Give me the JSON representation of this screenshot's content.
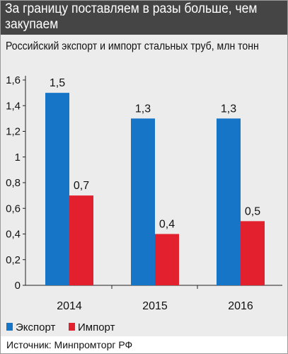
{
  "title": "За границу поставляем в разы больше, чем закупаем",
  "subtitle": "Российский экспорт и импорт стальных труб, млн тонн",
  "source": "Источник: Минпромторг РФ",
  "colors": {
    "header": "#454545",
    "panel": "#ececec",
    "export": "#1775c7",
    "import": "#e3202e"
  },
  "chart_data": {
    "type": "bar",
    "categories": [
      "2014",
      "2015",
      "2016"
    ],
    "series": [
      {
        "name": "Экспорт",
        "values": [
          1.5,
          1.3,
          1.3
        ],
        "labels": [
          "1,5",
          "1,3",
          "1,3"
        ],
        "color": "#1775c7"
      },
      {
        "name": "Импорт",
        "values": [
          0.7,
          0.4,
          0.5
        ],
        "labels": [
          "0,7",
          "0,4",
          "0,5"
        ],
        "color": "#e3202e"
      }
    ],
    "yticks": [
      0,
      0.2,
      0.4,
      0.6,
      0.8,
      1,
      1.2,
      1.4,
      1.6
    ],
    "ytick_labels": [
      "0",
      "0,2",
      "0,4",
      "0,6",
      "0,8",
      "1",
      "1,2",
      "1,4",
      "1,6"
    ],
    "ylim": [
      0,
      1.6
    ],
    "grid": false,
    "legend_position": "bottom-left"
  }
}
